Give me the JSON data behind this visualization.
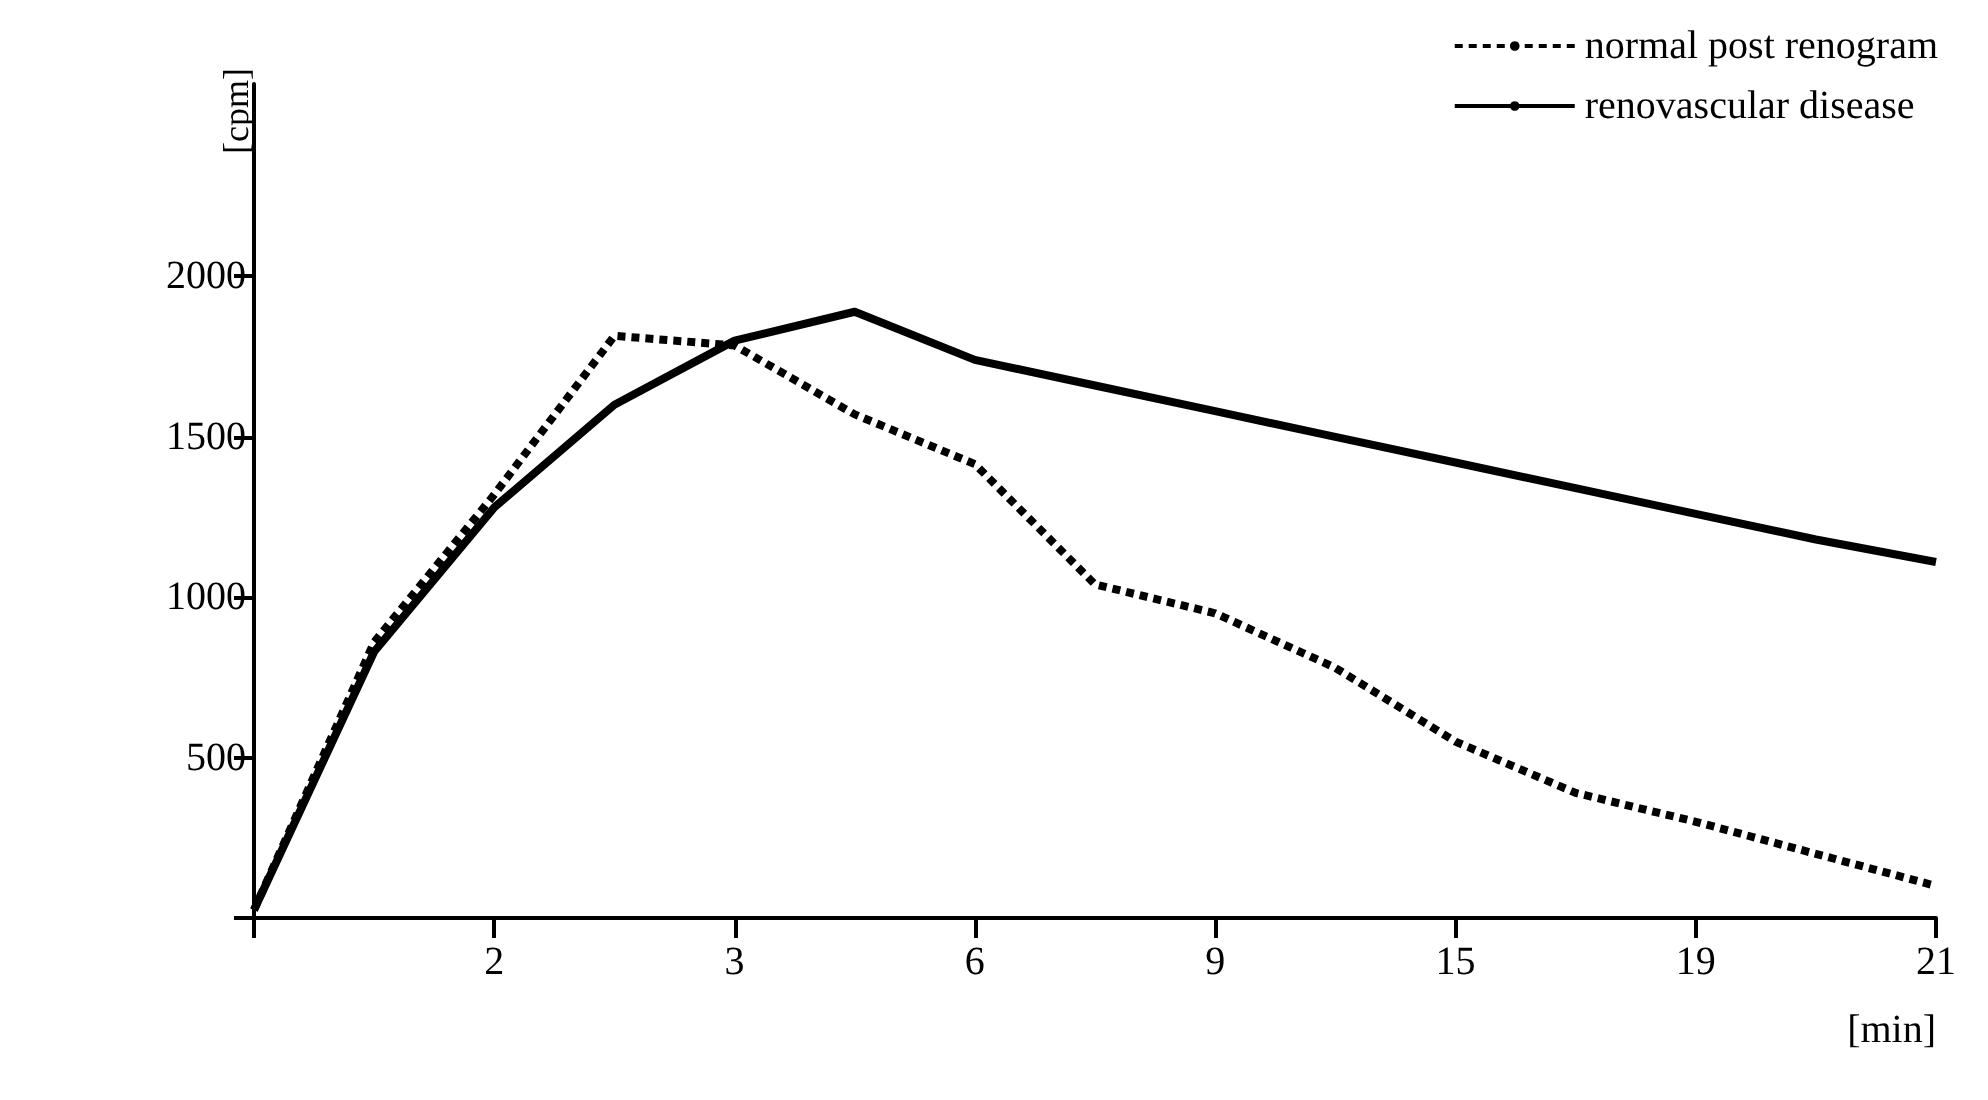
{
  "chart_data": {
    "type": "line",
    "xlabel": "[min]",
    "ylabel": "[cpm]",
    "categories": [
      null,
      null,
      "2",
      null,
      "3",
      null,
      "6",
      null,
      "9",
      null,
      "15",
      null,
      "19",
      null,
      "21"
    ],
    "series": [
      {
        "name": "normal post renogram",
        "color": "#000000",
        "line_style": "dashed",
        "values": [
          25,
          860,
          1320,
          1815,
          1785,
          1570,
          1415,
          1040,
          950,
          780,
          550,
          390,
          300,
          200,
          100
        ]
      },
      {
        "name": "renovascular disease",
        "color": "#000000",
        "line_style": "solid",
        "values": [
          25,
          830,
          1280,
          1600,
          1800,
          1890,
          1740,
          1660,
          1580,
          1500,
          1420,
          1340,
          1260,
          1180,
          1110
        ]
      }
    ],
    "ylim": [
      0,
      2600
    ],
    "yticks": [
      {
        "value": 0,
        "label": null
      },
      500,
      1000,
      1500,
      2000
    ],
    "grid": false,
    "legend": "top right",
    "marker": "none"
  }
}
